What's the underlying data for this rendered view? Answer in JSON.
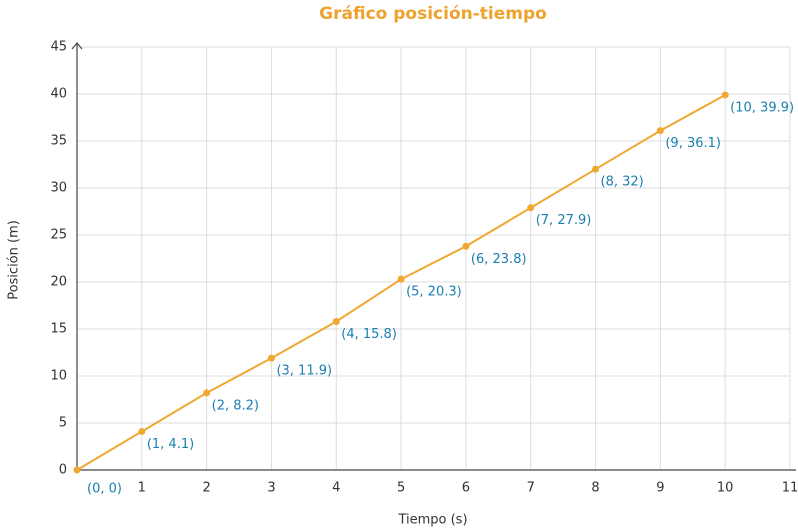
{
  "chart_data": {
    "type": "line",
    "title": "Gráfico posición-tiempo",
    "x_label": "Tiempo (s)",
    "y_label": "Posición (m)",
    "x": [
      0,
      1,
      2,
      3,
      4,
      5,
      6,
      7,
      8,
      9,
      10
    ],
    "values": [
      0,
      4.1,
      8.2,
      11.9,
      15.8,
      20.3,
      23.8,
      27.9,
      32,
      36.1,
      39.9
    ],
    "value_labels": [
      "(0, 0)",
      "(1, 4.1)",
      "(2, 8.2)",
      "(3, 11.9)",
      "(4, 15.8)",
      "(5, 20.3)",
      "(6, 23.8)",
      "(7, 27.9)",
      "(8, 32)",
      "(9, 36.1)",
      "(10, 39.9)"
    ],
    "color": "#f0a830",
    "xlim": [
      0,
      11
    ],
    "xticks": [
      1,
      2,
      3,
      4,
      5,
      6,
      7,
      8,
      9,
      10,
      11
    ],
    "ylim": [
      0,
      45
    ],
    "yticks": [
      0,
      5,
      10,
      15,
      20,
      25,
      30,
      35,
      40,
      45
    ],
    "grid": true
  }
}
